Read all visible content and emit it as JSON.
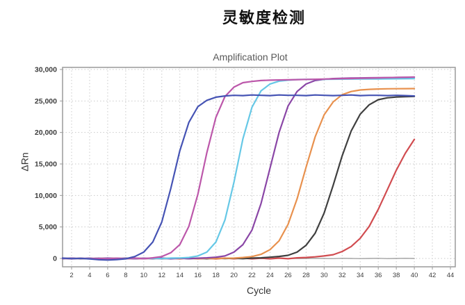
{
  "page": {
    "title": "灵敏度检测"
  },
  "chart_data": {
    "type": "line",
    "title": "Amplification Plot",
    "xlabel": "Cycle",
    "ylabel": "ΔRn",
    "grid": true,
    "legend": false,
    "xlim": [
      1,
      44.5
    ],
    "ylim": [
      -1200,
      30330
    ],
    "x_ticks": [
      2,
      4,
      6,
      8,
      10,
      12,
      14,
      16,
      18,
      20,
      22,
      24,
      26,
      28,
      30,
      32,
      34,
      36,
      38,
      40,
      42,
      44
    ],
    "y_ticks": [
      0,
      5000,
      10000,
      15000,
      20000,
      25000,
      30000
    ],
    "cycles": [
      1,
      2,
      3,
      4,
      5,
      6,
      7,
      8,
      9,
      10,
      11,
      12,
      13,
      14,
      15,
      16,
      17,
      18,
      19,
      20,
      21,
      22,
      23,
      24,
      25,
      26,
      27,
      28,
      29,
      30,
      31,
      32,
      33,
      34,
      35,
      36,
      37,
      38,
      39,
      40
    ],
    "colors": {
      "plot_border": "#9a9a9a",
      "gridline": "#c9c9c9",
      "tick_text": "#3d3d3d"
    },
    "series": [
      {
        "name": "gray-flat-baseline",
        "color": "#8f8f8f",
        "width": 1.2,
        "values": [
          0,
          20,
          -20,
          0,
          20,
          0,
          -20,
          20,
          0,
          -20,
          0,
          20,
          -20,
          0,
          20,
          0,
          -20,
          0,
          20,
          -20,
          0,
          20,
          0,
          -20,
          20,
          0,
          -20,
          0,
          20,
          0,
          -20,
          20,
          0,
          -20,
          0,
          20,
          -20,
          0,
          20,
          0
        ]
      },
      {
        "name": "red-curve",
        "color": "#d14c50",
        "width": 2.2,
        "values": [
          40,
          -60,
          30,
          -50,
          60,
          -40,
          30,
          -60,
          50,
          -30,
          60,
          -80,
          40,
          -60,
          80,
          -50,
          40,
          -70,
          60,
          -40,
          50,
          -60,
          40,
          -50,
          60,
          -40,
          100,
          150,
          250,
          400,
          600,
          1100,
          1900,
          3200,
          5100,
          7800,
          10900,
          14000,
          16700,
          18900
        ]
      },
      {
        "name": "black-curve",
        "color": "#3f3f3f",
        "width": 2.2,
        "values": [
          -20,
          30,
          -30,
          20,
          -30,
          40,
          -20,
          30,
          -40,
          20,
          -30,
          30,
          -20,
          40,
          -30,
          20,
          -40,
          30,
          -20,
          40,
          -30,
          60,
          100,
          200,
          320,
          500,
          1000,
          2100,
          4000,
          7200,
          11600,
          16300,
          20250,
          22900,
          24400,
          25200,
          25500,
          25620,
          25680,
          25720
        ]
      },
      {
        "name": "orange-curve",
        "color": "#e8914e",
        "width": 2.2,
        "values": [
          30,
          -30,
          20,
          -40,
          30,
          -20,
          40,
          -30,
          20,
          -40,
          30,
          -30,
          40,
          -20,
          30,
          -40,
          20,
          -30,
          40,
          60,
          150,
          300,
          650,
          1400,
          2800,
          5400,
          9450,
          14500,
          19300,
          22800,
          24850,
          26000,
          26500,
          26750,
          26850,
          26900,
          26930,
          26950,
          26960,
          26970
        ]
      },
      {
        "name": "purple-curve",
        "color": "#8a46a6",
        "width": 2.2,
        "values": [
          -30,
          40,
          -20,
          30,
          -40,
          50,
          -30,
          20,
          -40,
          30,
          -20,
          40,
          -50,
          30,
          -30,
          40,
          100,
          200,
          400,
          1000,
          2200,
          4500,
          8700,
          14350,
          20000,
          24200,
          26500,
          27700,
          28250,
          28450,
          28550,
          28600,
          28630,
          28650,
          28680,
          28700,
          28710,
          28730,
          28740,
          28760
        ]
      },
      {
        "name": "cyan-curve",
        "color": "#66c8e6",
        "width": 2.2,
        "values": [
          30,
          -40,
          20,
          -30,
          40,
          -50,
          30,
          -20,
          40,
          -30,
          20,
          -40,
          60,
          80,
          150,
          400,
          1000,
          2600,
          6100,
          12100,
          19000,
          24000,
          26600,
          27700,
          28150,
          28300,
          28400,
          28420,
          28440,
          28450,
          28460,
          28470,
          28480,
          28490,
          28500,
          28500,
          28510,
          28520,
          28530,
          28540
        ]
      },
      {
        "name": "magenta-curve",
        "color": "#bc57aa",
        "width": 2.2,
        "values": [
          40,
          -50,
          30,
          -40,
          20,
          -60,
          40,
          -30,
          50,
          -40,
          100,
          300,
          900,
          2200,
          5100,
          10200,
          16800,
          22400,
          25700,
          27200,
          27900,
          28100,
          28250,
          28300,
          28330,
          28360,
          28390,
          28420,
          28450,
          28480,
          28510,
          28540,
          28570,
          28600,
          28630,
          28660,
          28700,
          28730,
          28760,
          28800
        ]
      },
      {
        "name": "blue-curve",
        "color": "#4553b4",
        "width": 2.2,
        "values": [
          50,
          -30,
          20,
          -80,
          -200,
          -250,
          -180,
          -60,
          300,
          1000,
          2600,
          5800,
          11100,
          17100,
          21600,
          24100,
          25100,
          25600,
          25800,
          25900,
          25850,
          25950,
          25900,
          25850,
          25950,
          25900,
          25900,
          25850,
          25950,
          25900,
          25850,
          25900,
          25950,
          25850,
          25900,
          25900,
          25850,
          25900,
          25850,
          25800
        ]
      }
    ]
  }
}
